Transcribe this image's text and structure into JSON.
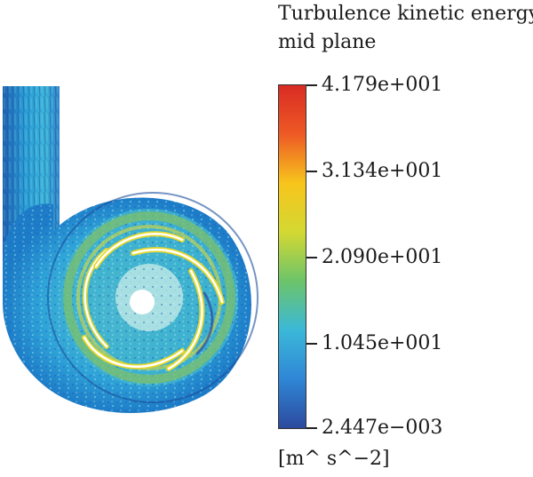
{
  "figure": {
    "title_line1": "Turbulence kinetic energy",
    "title_line2": "mid plane",
    "colorbar": {
      "colormap": "rainbow (blue to red)",
      "stops": [
        "#2c4a9e",
        "#2f86d6",
        "#3bb8d8",
        "#6cc46a",
        "#d3d832",
        "#f7c51c",
        "#ee5a25",
        "#d92b24"
      ],
      "tick_labels": [
        "4.179e+001",
        "3.134e+001",
        "2.090e+001",
        "1.045e+001",
        "2.447e−003"
      ],
      "unit": "[m^ s^−2]"
    },
    "contour_plot": {
      "subject": "pump volute and impeller cross-section",
      "dominant_colors": [
        "#1e9bd6",
        "#37b6c9",
        "#7cc06a",
        "#e6d82a"
      ]
    }
  }
}
